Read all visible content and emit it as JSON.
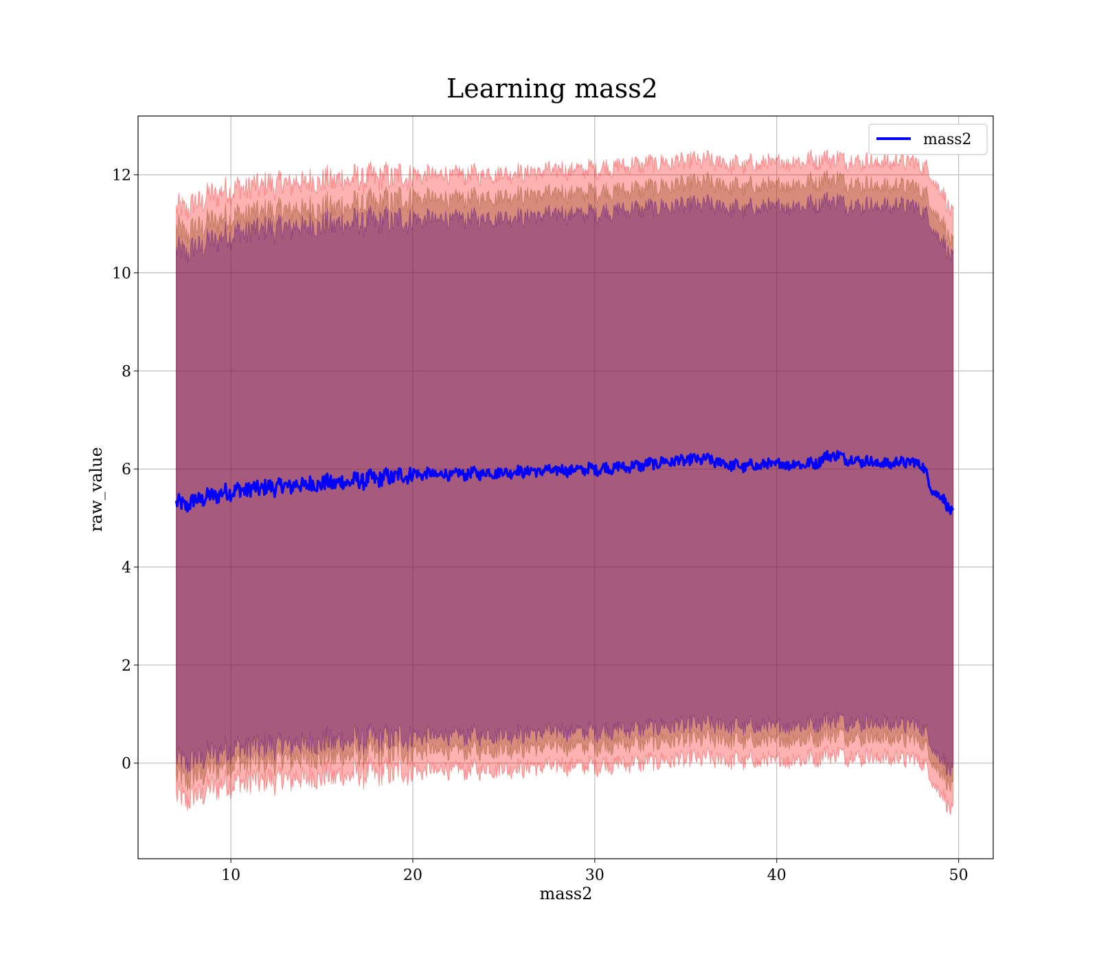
{
  "chart_data": {
    "type": "line",
    "title": "Learning mass2",
    "xlabel": "mass2",
    "ylabel": "raw_value",
    "xlim": [
      4.9,
      51.9
    ],
    "ylim": [
      -1.95,
      13.2
    ],
    "xticks": [
      10,
      20,
      30,
      40,
      50
    ],
    "yticks": [
      0,
      2,
      4,
      6,
      8,
      10,
      12
    ],
    "grid": true,
    "legend_position": "top-right",
    "series": [
      {
        "name": "mass2",
        "color": "#0000ff",
        "x": [
          7.0,
          7.5,
          8.0,
          9.0,
          10.0,
          12.0,
          14.0,
          16.0,
          18.0,
          20.0,
          22.0,
          24.0,
          26.0,
          28.0,
          30.0,
          32.0,
          34.0,
          36.0,
          38.0,
          40.0,
          42.0,
          43.0,
          44.0,
          46.0,
          47.0,
          48.0,
          48.5,
          49.0,
          49.7
        ],
        "y": [
          5.3,
          5.25,
          5.35,
          5.45,
          5.55,
          5.62,
          5.68,
          5.72,
          5.8,
          5.9,
          5.88,
          5.92,
          5.95,
          5.97,
          6.0,
          6.05,
          6.15,
          6.2,
          6.05,
          6.1,
          6.1,
          6.3,
          6.2,
          6.1,
          6.15,
          6.1,
          5.6,
          5.45,
          5.1
        ]
      }
    ],
    "bands": [
      {
        "color": "#ff0000",
        "opacity": 0.3,
        "x": [
          7.0,
          7.5,
          8.0,
          9.0,
          10.0,
          12.0,
          14.0,
          16.0,
          18.0,
          20.0,
          22.0,
          24.0,
          26.0,
          28.0,
          30.0,
          32.0,
          34.0,
          36.0,
          38.0,
          40.0,
          42.0,
          43.0,
          44.0,
          46.0,
          47.0,
          48.0,
          48.5,
          49.0,
          49.7
        ],
        "upper": [
          11.3,
          11.3,
          11.4,
          11.6,
          11.7,
          11.8,
          11.85,
          11.9,
          11.95,
          12.0,
          12.0,
          12.02,
          12.05,
          12.1,
          12.12,
          12.2,
          12.25,
          12.3,
          12.2,
          12.25,
          12.3,
          12.35,
          12.3,
          12.25,
          12.3,
          12.2,
          12.0,
          11.7,
          11.2
        ],
        "lower": [
          -0.7,
          -0.75,
          -0.7,
          -0.5,
          -0.4,
          -0.35,
          -0.3,
          -0.25,
          -0.2,
          -0.15,
          -0.15,
          -0.12,
          -0.1,
          -0.05,
          -0.05,
          0.0,
          0.05,
          0.1,
          0.05,
          0.05,
          0.1,
          0.2,
          0.15,
          0.1,
          0.1,
          0.05,
          -0.3,
          -0.6,
          -1.0
        ]
      },
      {
        "color": "#8b4513",
        "opacity": 0.35,
        "x": [
          7.0,
          7.5,
          8.0,
          9.0,
          10.0,
          12.0,
          14.0,
          16.0,
          18.0,
          20.0,
          22.0,
          24.0,
          26.0,
          28.0,
          30.0,
          32.0,
          34.0,
          36.0,
          38.0,
          40.0,
          42.0,
          43.0,
          44.0,
          46.0,
          47.0,
          48.0,
          48.5,
          49.0,
          49.7
        ],
        "upper": [
          10.9,
          10.8,
          10.9,
          11.05,
          11.15,
          11.25,
          11.3,
          11.35,
          11.42,
          11.55,
          11.5,
          11.55,
          11.6,
          11.62,
          11.65,
          11.7,
          11.78,
          11.85,
          11.75,
          11.78,
          11.85,
          11.95,
          11.85,
          11.75,
          11.8,
          11.7,
          11.4,
          11.1,
          10.6
        ],
        "lower": [
          -0.3,
          -0.35,
          -0.3,
          -0.1,
          0.0,
          0.05,
          0.1,
          0.15,
          0.2,
          0.25,
          0.25,
          0.28,
          0.3,
          0.35,
          0.35,
          0.4,
          0.45,
          0.5,
          0.45,
          0.45,
          0.5,
          0.6,
          0.55,
          0.5,
          0.5,
          0.45,
          0.1,
          -0.2,
          -0.5
        ]
      },
      {
        "color": "#4b0082",
        "opacity": 0.35,
        "x": [
          7.0,
          7.5,
          8.0,
          9.0,
          10.0,
          12.0,
          14.0,
          16.0,
          18.0,
          20.0,
          22.0,
          24.0,
          26.0,
          28.0,
          30.0,
          32.0,
          34.0,
          36.0,
          38.0,
          40.0,
          42.0,
          43.0,
          44.0,
          46.0,
          47.0,
          48.0,
          48.5,
          49.0,
          49.7
        ],
        "upper": [
          10.45,
          10.4,
          10.5,
          10.65,
          10.8,
          10.9,
          10.95,
          11.0,
          11.05,
          11.1,
          11.1,
          11.12,
          11.15,
          11.2,
          11.22,
          11.3,
          11.35,
          11.4,
          11.3,
          11.35,
          11.4,
          11.5,
          11.4,
          11.35,
          11.4,
          11.3,
          11.0,
          10.7,
          10.3
        ],
        "lower": [
          0.05,
          0.0,
          0.05,
          0.2,
          0.3,
          0.35,
          0.4,
          0.45,
          0.5,
          0.55,
          0.55,
          0.58,
          0.6,
          0.65,
          0.65,
          0.7,
          0.75,
          0.8,
          0.75,
          0.75,
          0.8,
          0.9,
          0.85,
          0.8,
          0.8,
          0.75,
          0.4,
          0.1,
          -0.2
        ]
      }
    ]
  }
}
